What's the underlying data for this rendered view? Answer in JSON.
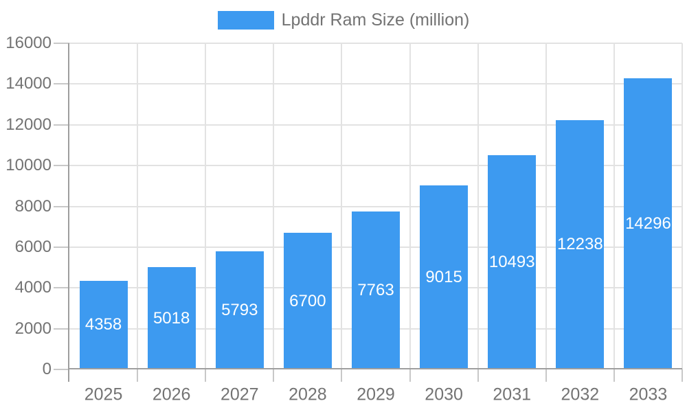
{
  "legend": {
    "label": "Lpddr Ram Size (million)"
  },
  "colors": {
    "bar": "#3d9af0",
    "grid": "#e2e2e2",
    "axis": "#9e9e9e",
    "tick": "#c8c8c8",
    "text": "#737373",
    "value_label": "#ffffff",
    "background": "#ffffff"
  },
  "chart_data": {
    "type": "bar",
    "categories": [
      "2025",
      "2026",
      "2027",
      "2028",
      "2029",
      "2030",
      "2031",
      "2032",
      "2033"
    ],
    "values": [
      4358,
      5018,
      5793,
      6700,
      7763,
      9015,
      10493,
      12238,
      14296
    ],
    "series_name": "Lpddr Ram Size (million)",
    "title": "",
    "xlabel": "",
    "ylabel": "",
    "ylim": [
      0,
      16000
    ],
    "ytick_step": 2000,
    "ytick_labels": [
      "0",
      "2000",
      "4000",
      "6000",
      "8000",
      "10000",
      "12000",
      "14000",
      "16000"
    ],
    "grid": true,
    "bar_labels_inside": true,
    "legend_position": "top-center"
  }
}
